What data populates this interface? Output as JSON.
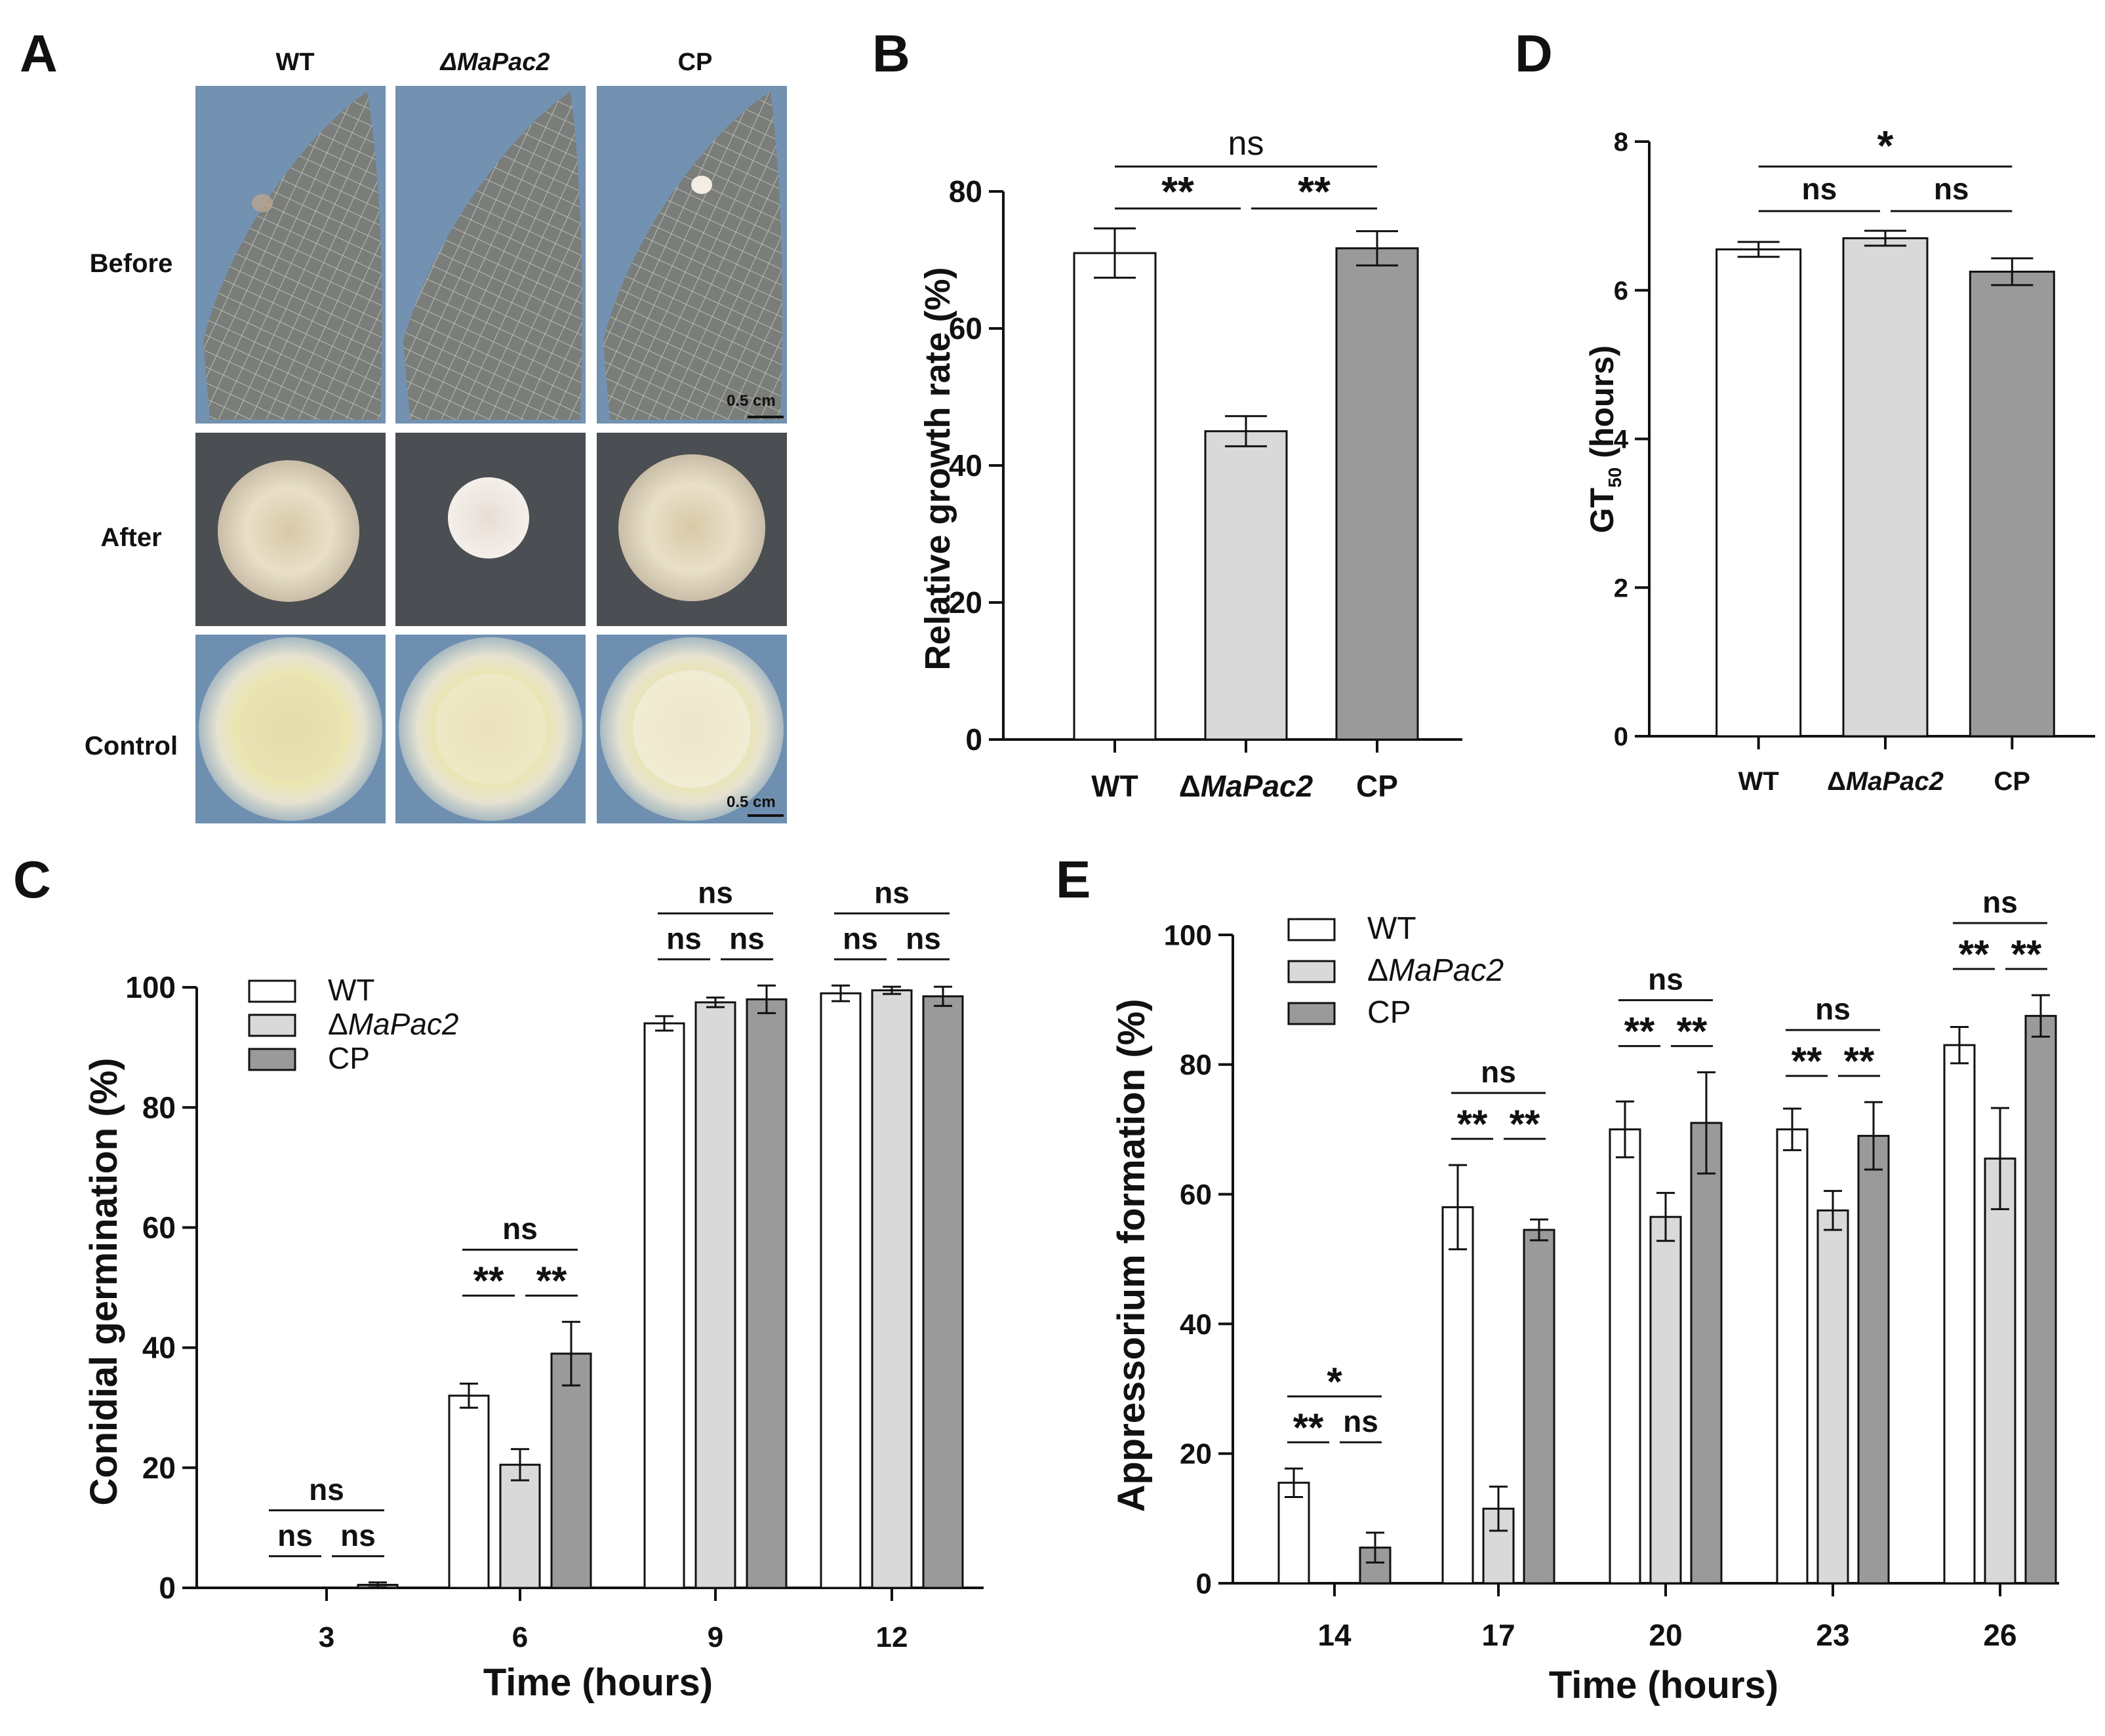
{
  "panel_labels": {
    "a": "A",
    "b": "B",
    "c": "C",
    "d": "D",
    "e": "E"
  },
  "photo_panel": {
    "columns": [
      "WT",
      "ΔMaPac2",
      "CP"
    ],
    "rows": [
      "Before",
      "After",
      "Control"
    ],
    "scale_bar_label": "0.5 cm",
    "colors": {
      "bluebg": "#6f8fae",
      "darkbg": "#4a4d50",
      "wing": "#7d7f7a",
      "colony": "#e7dcc6",
      "yellow": "#ece6a3"
    }
  },
  "chart_data": [
    {
      "id": "B",
      "type": "bar",
      "ylabel": "Relative growth rate (%)",
      "xlabel": "",
      "categories": [
        "WT",
        "ΔMaPac2",
        "CP"
      ],
      "values": [
        71,
        45,
        71.7
      ],
      "errors": [
        3.6,
        2.2,
        2.5
      ],
      "colors": [
        "#ffffff",
        "#d9d9d9",
        "#9a9a9a"
      ],
      "ylim": [
        0,
        80
      ],
      "yticks": [
        0,
        20,
        40,
        60,
        80
      ],
      "significance": [
        {
          "text": "ns",
          "from": 0,
          "to": 2,
          "level": 3
        },
        {
          "text": "**",
          "from": 0,
          "to": 1,
          "level": 2
        },
        {
          "text": "**",
          "from": 1,
          "to": 2,
          "level": 2
        }
      ]
    },
    {
      "id": "D",
      "type": "bar",
      "ylabel": "GT",
      "ylabel_sub": "50",
      "ylabel_tail": " (hours)",
      "xlabel": "",
      "categories": [
        "WT",
        "ΔMaPac2",
        "CP"
      ],
      "values": [
        6.55,
        6.7,
        6.25
      ],
      "errors": [
        0.1,
        0.1,
        0.18
      ],
      "colors": [
        "#ffffff",
        "#d9d9d9",
        "#9a9a9a"
      ],
      "ylim": [
        0,
        8
      ],
      "yticks": [
        0,
        2,
        4,
        6,
        8
      ],
      "significance": [
        {
          "text": "*",
          "from": 0,
          "to": 2,
          "level": 3
        },
        {
          "text": "ns",
          "from": 0,
          "to": 1,
          "level": 2
        },
        {
          "text": "ns",
          "from": 1,
          "to": 2,
          "level": 2
        }
      ]
    },
    {
      "id": "C",
      "type": "bar",
      "ylabel": "Conidial germination (%)",
      "xlabel": "Time (hours)",
      "categories": [
        "3",
        "6",
        "9",
        "12"
      ],
      "legend": {
        "position": "top-left"
      },
      "series": [
        {
          "name": "WT",
          "color": "#ffffff",
          "values": [
            0,
            32,
            94,
            99
          ],
          "errors": [
            0,
            2,
            1.2,
            1.3
          ]
        },
        {
          "name": "ΔMaPac2",
          "color": "#d9d9d9",
          "values": [
            0,
            20.5,
            97.5,
            99.5
          ],
          "errors": [
            0,
            2.6,
            0.8,
            0.6
          ]
        },
        {
          "name": "CP",
          "color": "#9a9a9a",
          "values": [
            0.5,
            39,
            98,
            98.5
          ],
          "errors": [
            0.4,
            5.3,
            2.3,
            1.6
          ]
        }
      ],
      "ylim": [
        0,
        100
      ],
      "yticks": [
        0,
        20,
        40,
        60,
        80,
        100
      ],
      "significance": [
        [
          {
            "text": "ns",
            "from": 0,
            "to": 2,
            "level": 3
          },
          {
            "text": "ns",
            "from": 0,
            "to": 1,
            "level": 2
          },
          {
            "text": "ns",
            "from": 1,
            "to": 2,
            "level": 2
          }
        ],
        [
          {
            "text": "ns",
            "from": 0,
            "to": 2,
            "level": 3
          },
          {
            "text": "**",
            "from": 0,
            "to": 1,
            "level": 2
          },
          {
            "text": "**",
            "from": 1,
            "to": 2,
            "level": 2
          }
        ],
        [
          {
            "text": "ns",
            "from": 0,
            "to": 2,
            "level": 3
          },
          {
            "text": "ns",
            "from": 0,
            "to": 1,
            "level": 2
          },
          {
            "text": "ns",
            "from": 1,
            "to": 2,
            "level": 2
          }
        ],
        [
          {
            "text": "ns",
            "from": 0,
            "to": 2,
            "level": 3
          },
          {
            "text": "ns",
            "from": 0,
            "to": 1,
            "level": 2
          },
          {
            "text": "ns",
            "from": 1,
            "to": 2,
            "level": 2
          }
        ]
      ]
    },
    {
      "id": "E",
      "type": "bar",
      "ylabel": "Appressorium formation (%)",
      "xlabel": "Time (hours)",
      "categories": [
        "14",
        "17",
        "20",
        "23",
        "26"
      ],
      "legend": {
        "position": "top-left"
      },
      "series": [
        {
          "name": "WT",
          "color": "#ffffff",
          "values": [
            15.5,
            58,
            70,
            70,
            83
          ],
          "errors": [
            2.2,
            6.5,
            4.3,
            3.2,
            2.8
          ]
        },
        {
          "name": "ΔMaPac2",
          "color": "#d9d9d9",
          "values": [
            0,
            11.5,
            56.5,
            57.5,
            65.5
          ],
          "errors": [
            0,
            3.4,
            3.7,
            3,
            7.8
          ]
        },
        {
          "name": "CP",
          "color": "#9a9a9a",
          "values": [
            5.5,
            54.5,
            71,
            69,
            87.5
          ],
          "errors": [
            2.3,
            1.6,
            7.8,
            5.2,
            3.2
          ]
        }
      ],
      "ylim": [
        0,
        100
      ],
      "yticks": [
        0,
        20,
        40,
        60,
        80,
        100
      ],
      "significance": [
        [
          {
            "text": "*",
            "from": 0,
            "to": 2,
            "level": 3
          },
          {
            "text": "**",
            "from": 0,
            "to": 1,
            "level": 2
          },
          {
            "text": "ns",
            "from": 1,
            "to": 2,
            "level": 2
          }
        ],
        [
          {
            "text": "ns",
            "from": 0,
            "to": 2,
            "level": 3
          },
          {
            "text": "**",
            "from": 0,
            "to": 1,
            "level": 2
          },
          {
            "text": "**",
            "from": 1,
            "to": 2,
            "level": 2
          }
        ],
        [
          {
            "text": "ns",
            "from": 0,
            "to": 2,
            "level": 3
          },
          {
            "text": "**",
            "from": 0,
            "to": 1,
            "level": 2
          },
          {
            "text": "**",
            "from": 1,
            "to": 2,
            "level": 2
          }
        ],
        [
          {
            "text": "ns",
            "from": 0,
            "to": 2,
            "level": 3
          },
          {
            "text": "**",
            "from": 0,
            "to": 1,
            "level": 2
          },
          {
            "text": "**",
            "from": 1,
            "to": 2,
            "level": 2
          }
        ],
        [
          {
            "text": "ns",
            "from": 0,
            "to": 2,
            "level": 3
          },
          {
            "text": "**",
            "from": 0,
            "to": 1,
            "level": 2
          },
          {
            "text": "**",
            "from": 1,
            "to": 2,
            "level": 2
          }
        ]
      ]
    }
  ]
}
